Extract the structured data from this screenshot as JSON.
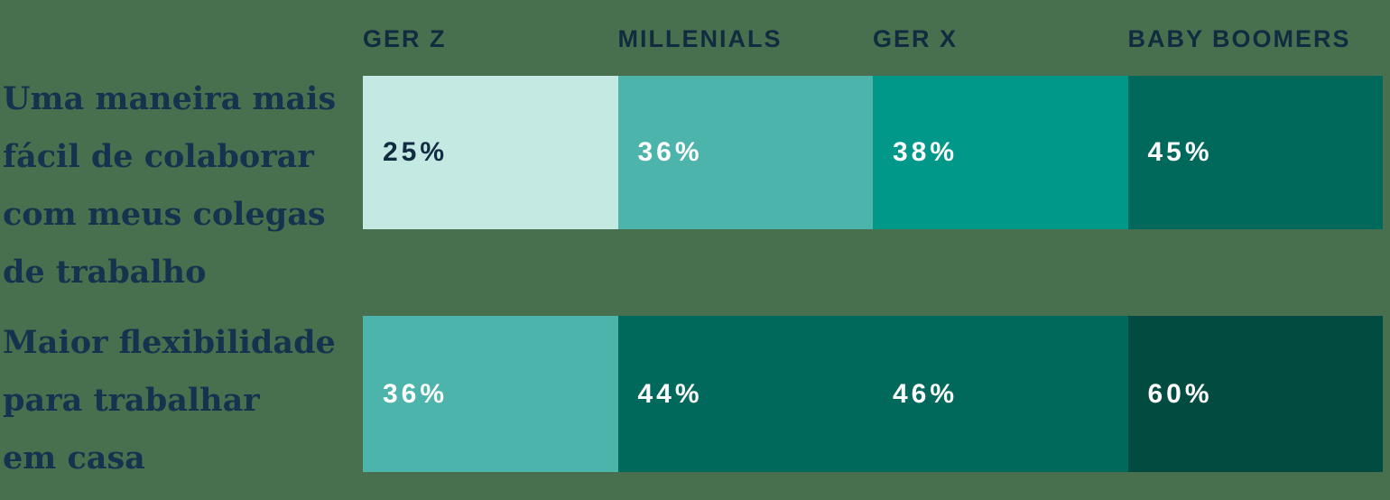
{
  "colors": {
    "background": "#48704E",
    "header_text": "#112B40",
    "label_text": "#15324E",
    "value_text_light": "#FFFFFF",
    "value_text_dark": "#112B40",
    "scale_mint": "#C4E8E2",
    "scale_teal": "#4CB4AB",
    "scale_green": "#009889",
    "scale_dark_green": "#01695C",
    "scale_darkest_green": "#014B40"
  },
  "header": {
    "columns": [
      "GER Z",
      "MILLENIALS",
      "GER X",
      "BABY BOOMERS"
    ]
  },
  "rows": [
    {
      "label": "Uma maneira mais fácil de colaborar com meus colegas de trabalho",
      "label_lines": [
        "Uma maneira mais",
        "fácil de colaborar",
        "com meus colegas",
        "de trabalho"
      ],
      "cells": [
        {
          "value": 25,
          "display": "25%",
          "bg": "#C4E8E2",
          "text_color": "#112B40"
        },
        {
          "value": 36,
          "display": "36%",
          "bg": "#4CB4AB",
          "text_color": "#FFFFFF"
        },
        {
          "value": 38,
          "display": "38%",
          "bg": "#009889",
          "text_color": "#FFFFFF"
        },
        {
          "value": 45,
          "display": "45%",
          "bg": "#01695C",
          "text_color": "#FFFFFF"
        }
      ]
    },
    {
      "label": "Maior flexibilidade para trabalhar em casa",
      "label_lines": [
        "Maior flexibilidade",
        "para trabalhar",
        "em casa"
      ],
      "cells": [
        {
          "value": 36,
          "display": "36%",
          "bg": "#4CB4AB",
          "text_color": "#FFFFFF"
        },
        {
          "value": 44,
          "display": "44%",
          "bg": "#01695C",
          "text_color": "#FFFFFF"
        },
        {
          "value": 46,
          "display": "46%",
          "bg": "#01695C",
          "text_color": "#FFFFFF"
        },
        {
          "value": 60,
          "display": "60%",
          "bg": "#014B40",
          "text_color": "#FFFFFF"
        }
      ]
    }
  ],
  "chart_data": {
    "type": "heatmap",
    "categories": [
      "GER Z",
      "MILLENIALS",
      "GER X",
      "BABY BOOMERS"
    ],
    "rows": [
      {
        "label": "Uma maneira mais fácil de colaborar com meus colegas de trabalho",
        "values": [
          25,
          36,
          38,
          45
        ]
      },
      {
        "label": "Maior flexibilidade para trabalhar em casa",
        "values": [
          36,
          44,
          46,
          60
        ]
      }
    ],
    "unit": "%",
    "value_labels": [
      [
        "25%",
        "36%",
        "38%",
        "45%"
      ],
      [
        "36%",
        "44%",
        "46%",
        "60%"
      ]
    ],
    "layout": {
      "columns_equal_width": true,
      "value_label_position": "left-center of cell",
      "color_encoding": "higher value = darker green",
      "color_scale": [
        "#C4E8E2",
        "#4CB4AB",
        "#009889",
        "#01695C",
        "#014B40"
      ]
    }
  }
}
